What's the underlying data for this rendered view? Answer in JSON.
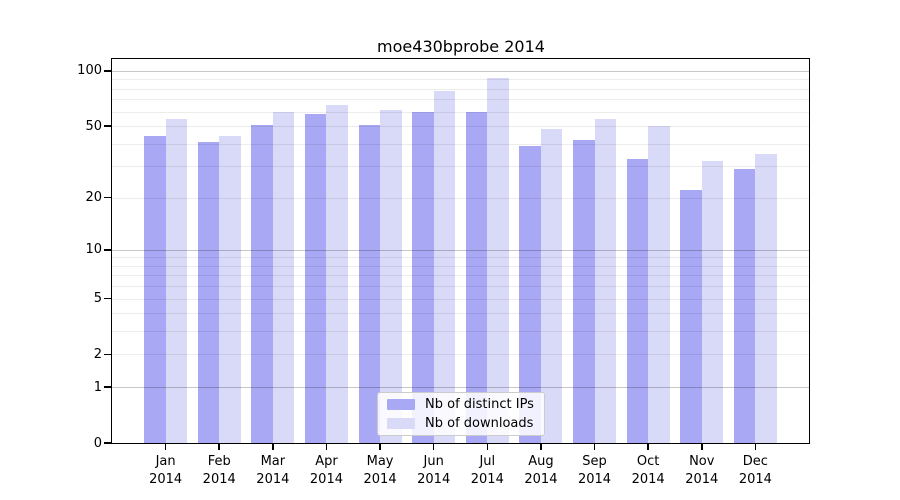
{
  "title": "moe430bprobe 2014",
  "chart_data": {
    "type": "bar",
    "title": "moe430bprobe 2014",
    "categories": [
      "Jan",
      "Feb",
      "Mar",
      "Apr",
      "May",
      "Jun",
      "Jul",
      "Aug",
      "Sep",
      "Oct",
      "Nov",
      "Dec"
    ],
    "xtick_year": "2014",
    "series": [
      {
        "name": "Nb of distinct IPs",
        "color": "#a8a8f4",
        "values": [
          44,
          41,
          51,
          58,
          51,
          60,
          60,
          39,
          42,
          33,
          22,
          29
        ]
      },
      {
        "name": "Nb of downloads",
        "color": "#d9d9f8",
        "values": [
          55,
          44,
          60,
          65,
          61,
          78,
          92,
          48,
          55,
          50,
          32,
          35
        ]
      }
    ],
    "xlabel": "",
    "ylabel": "",
    "yscale": "log1p",
    "ylim": [
      0,
      115
    ],
    "yticks": [
      100,
      50,
      20,
      10,
      5,
      2,
      1,
      0
    ],
    "grid": true,
    "grid_major": [
      1,
      10,
      100
    ],
    "grid_minor": [
      2,
      3,
      4,
      5,
      6,
      7,
      8,
      9,
      20,
      30,
      40,
      50,
      60,
      70,
      80,
      90
    ],
    "legend_position": "lower center"
  }
}
